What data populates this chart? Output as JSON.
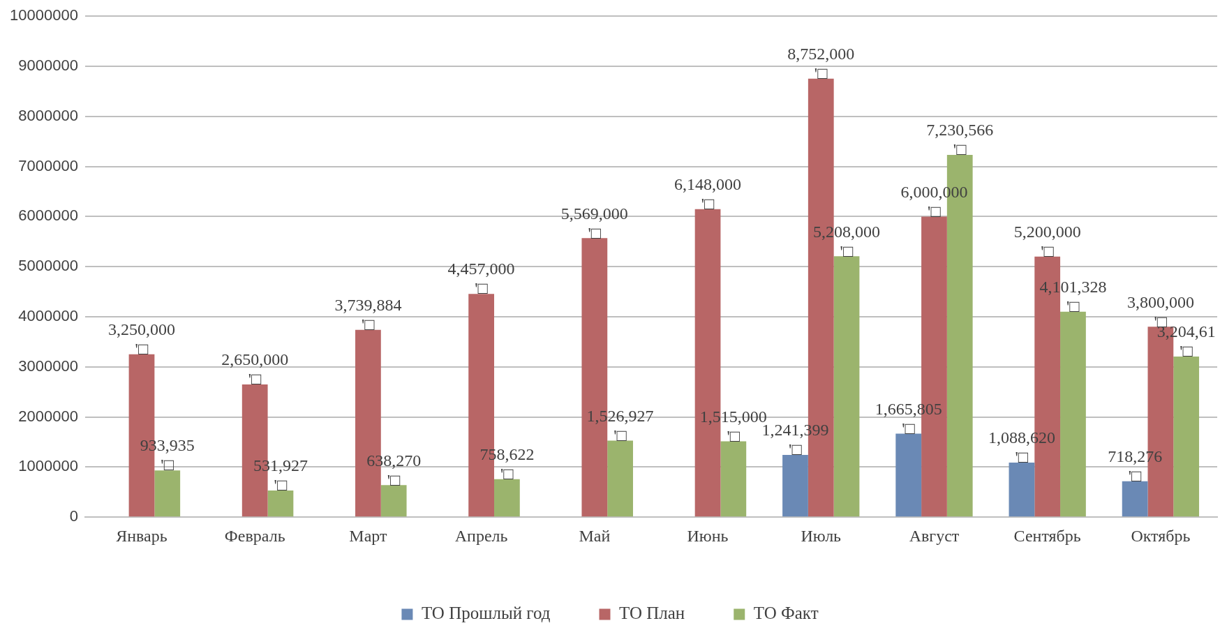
{
  "chart_data": {
    "type": "bar",
    "categories": [
      "Январь",
      "Февраль",
      "Март",
      "Апрель",
      "Май",
      "Июнь",
      "Июль",
      "Август",
      "Сентябрь",
      "Октябрь"
    ],
    "series": [
      {
        "name": "ТО Прошлый год",
        "color": "#6a89b5",
        "values": [
          null,
          null,
          null,
          null,
          null,
          null,
          1241399,
          1665805,
          1088620,
          718276
        ],
        "value_labels": [
          null,
          null,
          null,
          null,
          null,
          null,
          "1,241,399 '□",
          "1,665,805 '□",
          "1,088,620 '□",
          "718,276 '□"
        ]
      },
      {
        "name": "ТО План",
        "color": "#b86666",
        "values": [
          3250000,
          2650000,
          3739884,
          4457000,
          5569000,
          6148000,
          8752000,
          6000000,
          5200000,
          3800000
        ],
        "value_labels": [
          "3,250,000 '□",
          "2,650,000 '□",
          "3,739,884 '□",
          "4,457,000 '□",
          "5,569,000 '□",
          "6,148,000 '□",
          "8,752,000 '□",
          "6,000,000 '□",
          "5,200,000 '□",
          "3,800,000 '□"
        ]
      },
      {
        "name": "ТО Факт",
        "color": "#9bb46d",
        "values": [
          933935,
          531927,
          638270,
          758622,
          1526927,
          1515000,
          5208000,
          7230566,
          4101328,
          3204610
        ],
        "value_labels": [
          "933,935 '□",
          "531,927 '□",
          "638,270 '□",
          "758,622 '□",
          "1,526,927 '□",
          "1,515,000 '□",
          "5,208,000 '□",
          "7,230,566 '□",
          "4,101,328 '□",
          "3,204,61 '□"
        ]
      }
    ],
    "ylim": [
      0,
      10000000
    ],
    "yticks": [
      0,
      1000000,
      2000000,
      3000000,
      4000000,
      5000000,
      6000000,
      7000000,
      8000000,
      9000000,
      10000000
    ],
    "grid": "y",
    "legend": "bottom"
  }
}
